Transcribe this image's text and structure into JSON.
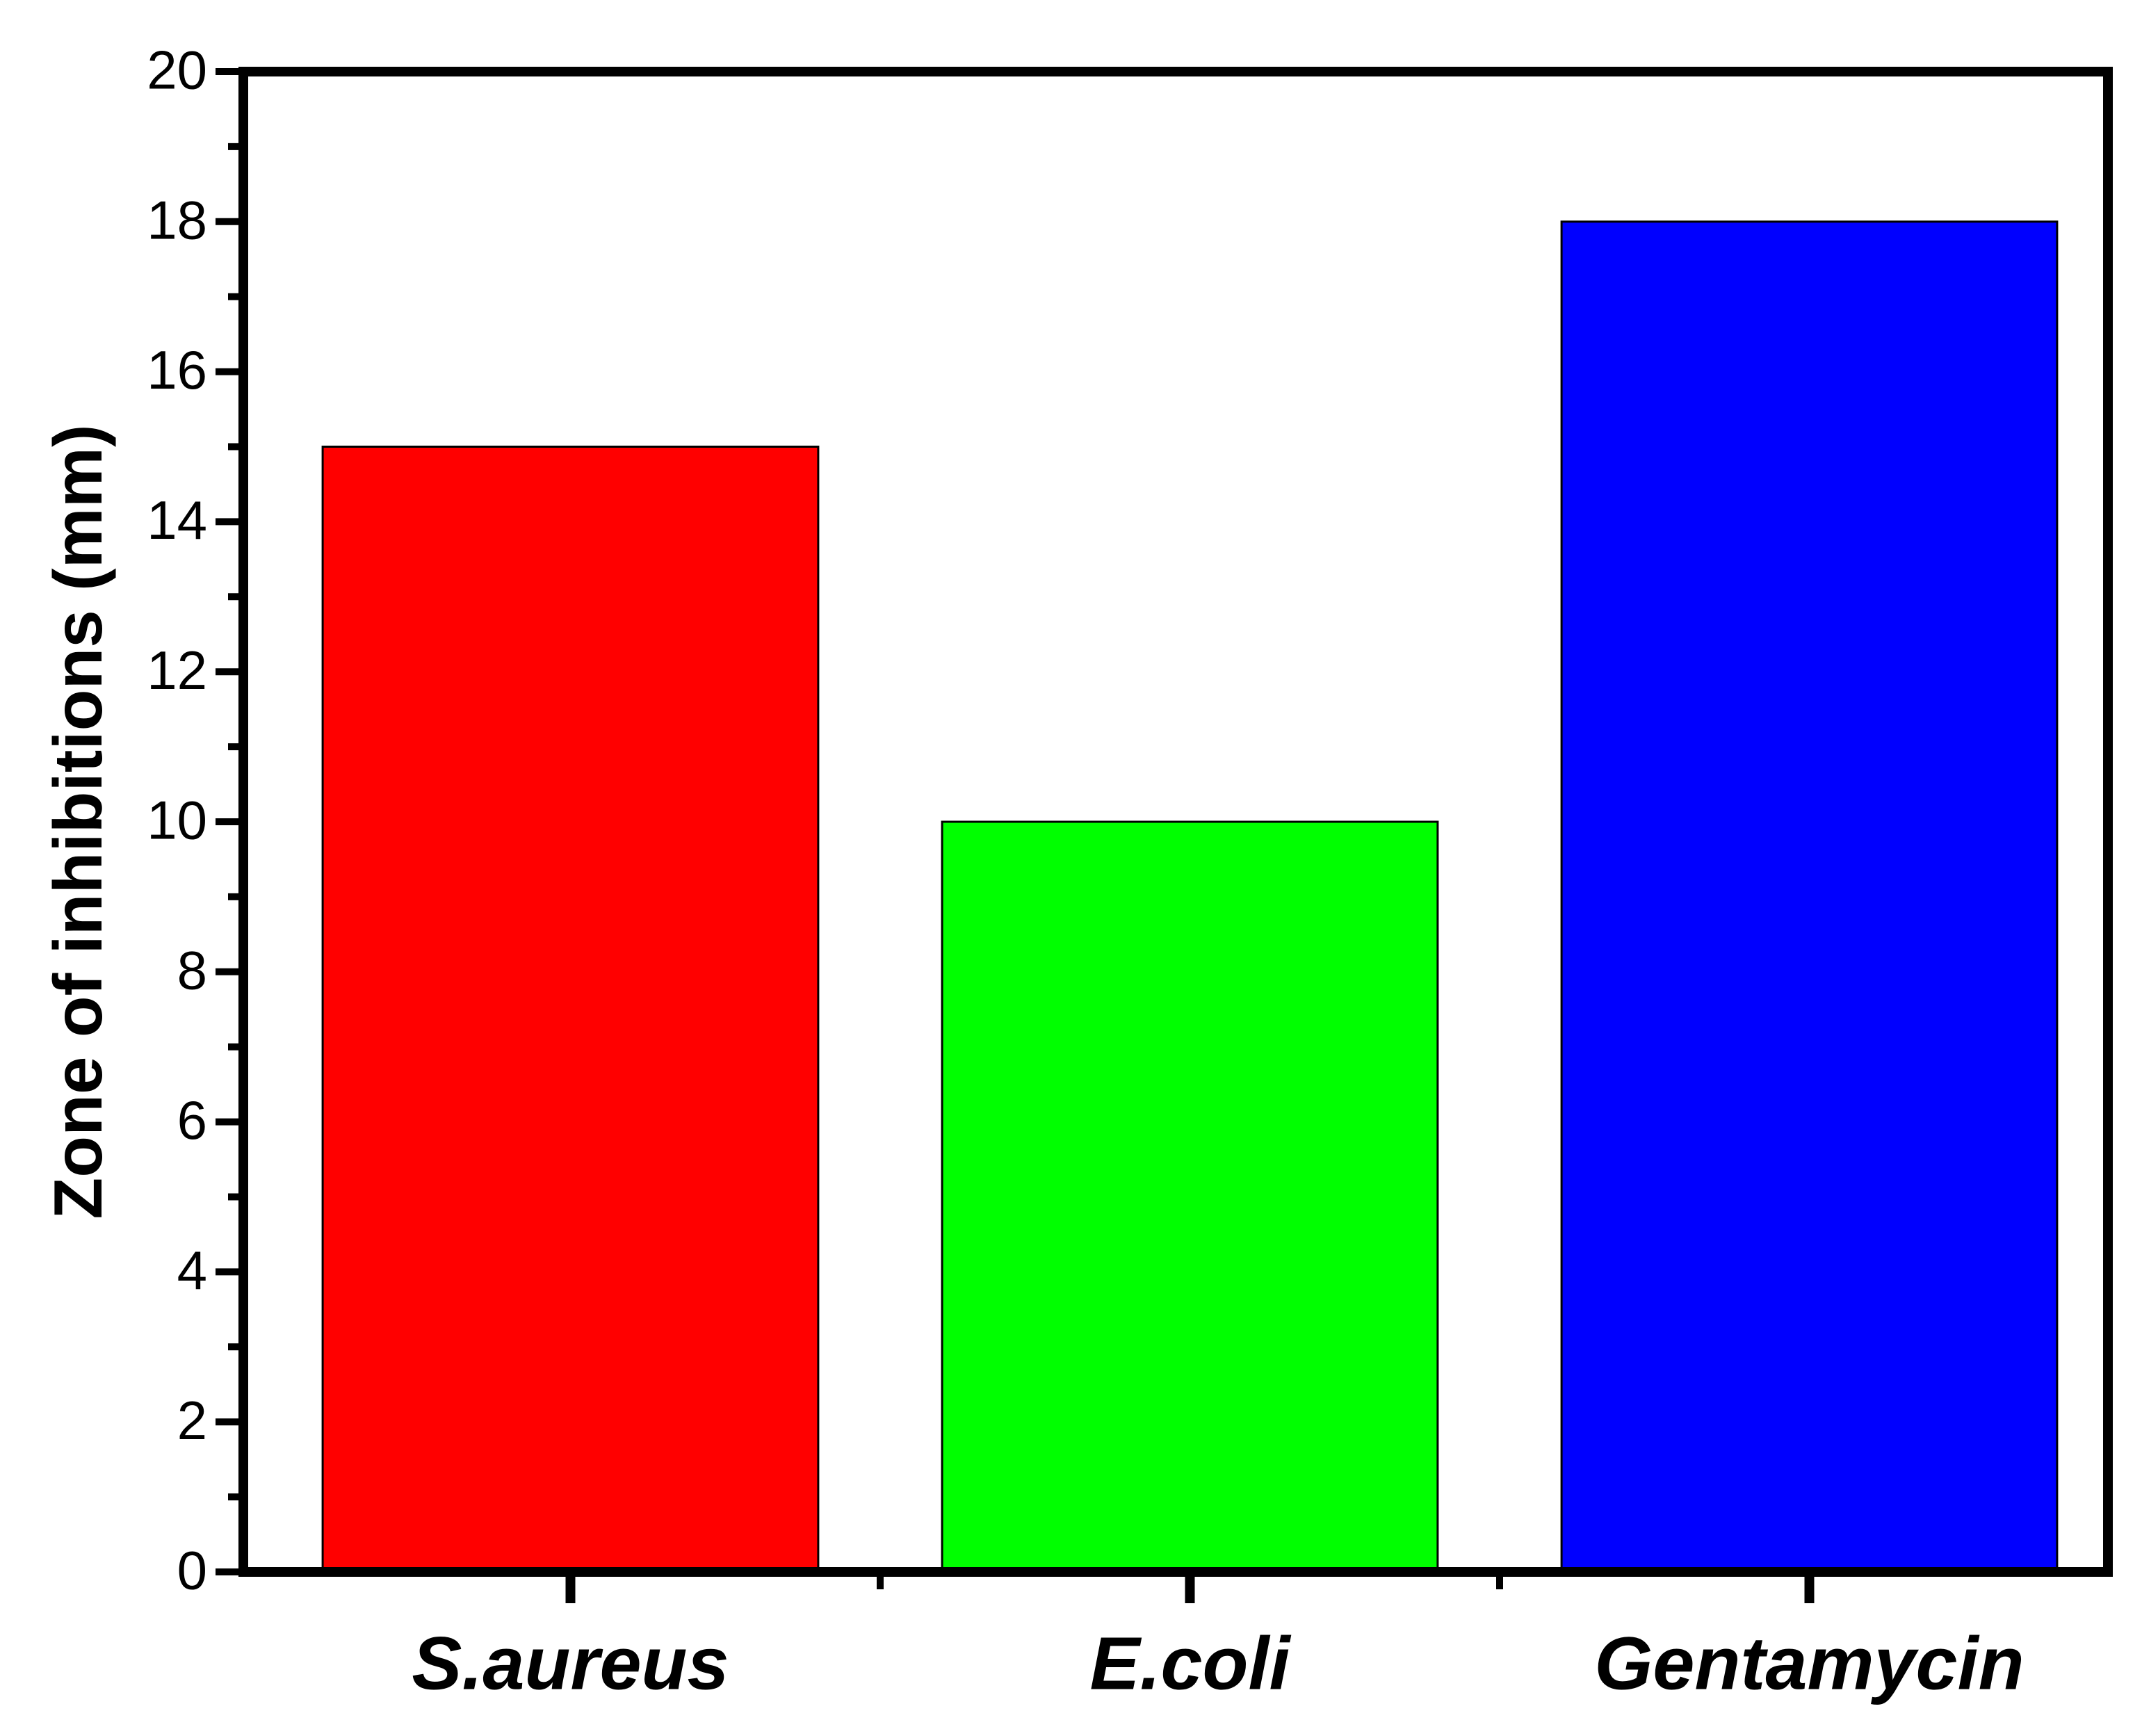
{
  "chart_data": {
    "type": "bar",
    "y_label": "Zone of inhibitions (mm)",
    "categories": [
      "S.aureus",
      "E.coli",
      "Gentamycin"
    ],
    "values": [
      15,
      10,
      18
    ],
    "colors": [
      "#ff0000",
      "#00ff00",
      "#0000ff"
    ],
    "ylim": [
      0,
      20
    ],
    "yticks": [
      0,
      2,
      4,
      6,
      8,
      10,
      12,
      14,
      16,
      18,
      20
    ],
    "grid": false
  }
}
